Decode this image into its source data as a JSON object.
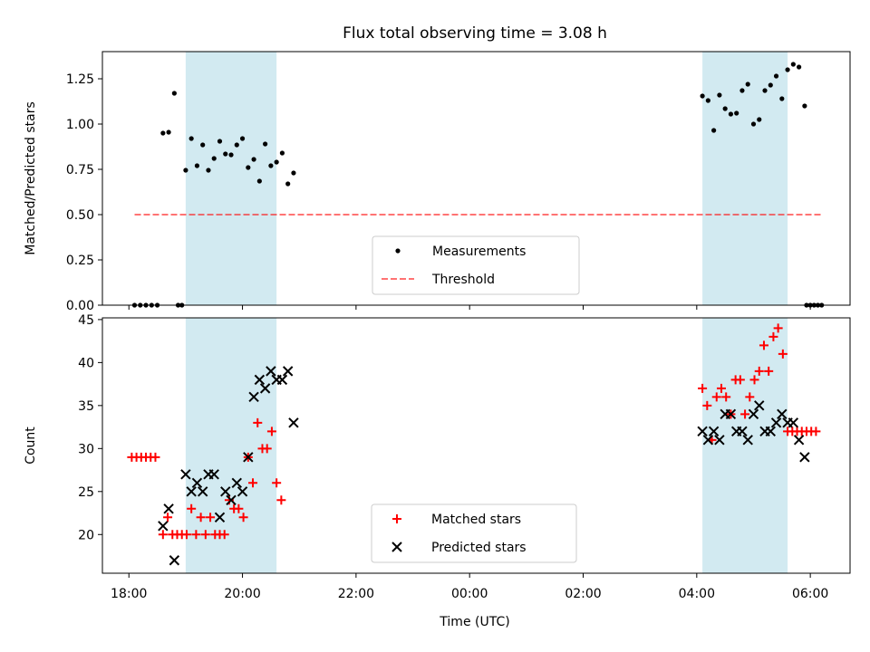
{
  "title": "Flux total observing time = 3.08 h",
  "xlabel": "Time (UTC)",
  "x_ticks": [
    "18:00",
    "20:00",
    "22:00",
    "00:00",
    "02:00",
    "04:00",
    "06:00"
  ],
  "colors": {
    "shade": "#add8e6",
    "measurement": "#000000",
    "threshold": "#ff0000",
    "matched": "#ff0000",
    "predicted": "#000000"
  },
  "chart_data": [
    {
      "type": "scatter",
      "ylabel": "Matched/Predicted stars",
      "xlim": [
        "17:32",
        "06:42"
      ],
      "ylim": [
        0,
        1.4
      ],
      "y_ticks": [
        "0.00",
        "0.25",
        "0.50",
        "0.75",
        "1.00",
        "1.25"
      ],
      "shaded_intervals": [
        [
          "19:00",
          "20:36"
        ],
        [
          "04:06",
          "05:36"
        ]
      ],
      "legend": {
        "position": "lower center",
        "entries": [
          "Measurements",
          "Threshold"
        ]
      },
      "series": [
        {
          "name": "Measurements",
          "marker": "dot",
          "points": [
            [
              "18:06",
              0
            ],
            [
              "18:12",
              0
            ],
            [
              "18:18",
              0
            ],
            [
              "18:24",
              0
            ],
            [
              "18:30",
              0
            ],
            [
              "18:36",
              0.95
            ],
            [
              "18:42",
              0.955
            ],
            [
              "18:48",
              1.17
            ],
            [
              "18:52",
              0
            ],
            [
              "18:56",
              0
            ],
            [
              "19:00",
              0.745
            ],
            [
              "19:06",
              0.92
            ],
            [
              "19:12",
              0.77
            ],
            [
              "19:18",
              0.885
            ],
            [
              "19:24",
              0.745
            ],
            [
              "19:30",
              0.81
            ],
            [
              "19:36",
              0.905
            ],
            [
              "19:42",
              0.835
            ],
            [
              "19:48",
              0.83
            ],
            [
              "19:54",
              0.885
            ],
            [
              "20:00",
              0.92
            ],
            [
              "20:06",
              0.76
            ],
            [
              "20:12",
              0.805
            ],
            [
              "20:18",
              0.685
            ],
            [
              "20:24",
              0.89
            ],
            [
              "20:30",
              0.77
            ],
            [
              "20:36",
              0.79
            ],
            [
              "20:42",
              0.84
            ],
            [
              "20:48",
              0.67
            ],
            [
              "20:54",
              0.73
            ],
            [
              "04:06",
              1.155
            ],
            [
              "04:12",
              1.13
            ],
            [
              "04:18",
              0.965
            ],
            [
              "04:24",
              1.16
            ],
            [
              "04:30",
              1.085
            ],
            [
              "04:36",
              1.055
            ],
            [
              "04:42",
              1.06
            ],
            [
              "04:48",
              1.185
            ],
            [
              "04:54",
              1.22
            ],
            [
              "05:00",
              1.0
            ],
            [
              "05:06",
              1.025
            ],
            [
              "05:12",
              1.185
            ],
            [
              "05:18",
              1.215
            ],
            [
              "05:24",
              1.265
            ],
            [
              "05:30",
              1.14
            ],
            [
              "05:36",
              1.3
            ],
            [
              "05:42",
              1.33
            ],
            [
              "05:48",
              1.315
            ],
            [
              "05:54",
              1.1
            ],
            [
              "05:56",
              0
            ],
            [
              "06:00",
              0
            ],
            [
              "06:04",
              0
            ],
            [
              "06:08",
              0
            ],
            [
              "06:12",
              0
            ]
          ]
        },
        {
          "name": "Threshold",
          "style": "dashed",
          "x": [
            "18:06",
            "06:12"
          ],
          "y": [
            0.5,
            0.5
          ]
        }
      ]
    },
    {
      "type": "scatter",
      "ylabel": "Count",
      "xlim": [
        "17:32",
        "06:42"
      ],
      "ylim": [
        15.5,
        45.2
      ],
      "y_ticks": [
        "20",
        "25",
        "30",
        "35",
        "40",
        "45"
      ],
      "shaded_intervals": [
        [
          "19:00",
          "20:36"
        ],
        [
          "04:06",
          "05:36"
        ]
      ],
      "legend": {
        "position": "lower center",
        "entries": [
          "Matched stars",
          "Predicted stars"
        ]
      },
      "series": [
        {
          "name": "Matched stars",
          "marker": "+",
          "points": [
            [
              "18:03",
              29
            ],
            [
              "18:08",
              29
            ],
            [
              "18:13",
              29
            ],
            [
              "18:18",
              29
            ],
            [
              "18:23",
              29
            ],
            [
              "18:28",
              29
            ],
            [
              "18:36",
              20
            ],
            [
              "18:41",
              22
            ],
            [
              "18:46",
              20
            ],
            [
              "18:51",
              20
            ],
            [
              "18:56",
              20
            ],
            [
              "19:01",
              20
            ],
            [
              "19:06",
              23
            ],
            [
              "19:11",
              20
            ],
            [
              "19:16",
              22
            ],
            [
              "19:21",
              20
            ],
            [
              "19:26",
              22
            ],
            [
              "19:31",
              20
            ],
            [
              "19:36",
              20
            ],
            [
              "19:41",
              20
            ],
            [
              "19:46",
              24
            ],
            [
              "19:51",
              23
            ],
            [
              "19:56",
              23
            ],
            [
              "20:01",
              22
            ],
            [
              "20:06",
              29
            ],
            [
              "20:11",
              26
            ],
            [
              "20:16",
              33
            ],
            [
              "20:21",
              30
            ],
            [
              "20:26",
              30
            ],
            [
              "20:31",
              32
            ],
            [
              "20:36",
              26
            ],
            [
              "20:41",
              24
            ],
            [
              "04:06",
              37
            ],
            [
              "04:11",
              35
            ],
            [
              "04:16",
              31
            ],
            [
              "04:21",
              36
            ],
            [
              "04:26",
              37
            ],
            [
              "04:31",
              36
            ],
            [
              "04:36",
              34
            ],
            [
              "04:41",
              38
            ],
            [
              "04:46",
              38
            ],
            [
              "04:51",
              34
            ],
            [
              "04:56",
              36
            ],
            [
              "05:01",
              38
            ],
            [
              "05:06",
              39
            ],
            [
              "05:11",
              42
            ],
            [
              "05:16",
              39
            ],
            [
              "05:21",
              43
            ],
            [
              "05:26",
              44
            ],
            [
              "05:31",
              41
            ],
            [
              "05:36",
              32
            ],
            [
              "05:41",
              32
            ],
            [
              "05:46",
              32
            ],
            [
              "05:51",
              32
            ],
            [
              "05:56",
              32
            ],
            [
              "06:01",
              32
            ],
            [
              "06:06",
              32
            ]
          ]
        },
        {
          "name": "Predicted stars",
          "marker": "x",
          "points": [
            [
              "18:36",
              21
            ],
            [
              "18:42",
              23
            ],
            [
              "18:48",
              17
            ],
            [
              "19:00",
              27
            ],
            [
              "19:06",
              25
            ],
            [
              "19:12",
              26
            ],
            [
              "19:18",
              25
            ],
            [
              "19:24",
              27
            ],
            [
              "19:30",
              27
            ],
            [
              "19:36",
              22
            ],
            [
              "19:42",
              25
            ],
            [
              "19:48",
              24
            ],
            [
              "19:54",
              26
            ],
            [
              "20:00",
              25
            ],
            [
              "20:06",
              29
            ],
            [
              "20:12",
              36
            ],
            [
              "20:18",
              38
            ],
            [
              "20:24",
              37
            ],
            [
              "20:30",
              39
            ],
            [
              "20:36",
              38
            ],
            [
              "20:42",
              38
            ],
            [
              "20:48",
              39
            ],
            [
              "20:54",
              33
            ],
            [
              "04:06",
              32
            ],
            [
              "04:12",
              31
            ],
            [
              "04:18",
              32
            ],
            [
              "04:24",
              31
            ],
            [
              "04:30",
              34
            ],
            [
              "04:36",
              34
            ],
            [
              "04:42",
              32
            ],
            [
              "04:48",
              32
            ],
            [
              "04:54",
              31
            ],
            [
              "05:00",
              34
            ],
            [
              "05:06",
              35
            ],
            [
              "05:12",
              32
            ],
            [
              "05:18",
              32
            ],
            [
              "05:24",
              33
            ],
            [
              "05:30",
              34
            ],
            [
              "05:36",
              33
            ],
            [
              "05:42",
              33
            ],
            [
              "05:48",
              31
            ],
            [
              "05:54",
              29
            ]
          ]
        }
      ]
    }
  ]
}
